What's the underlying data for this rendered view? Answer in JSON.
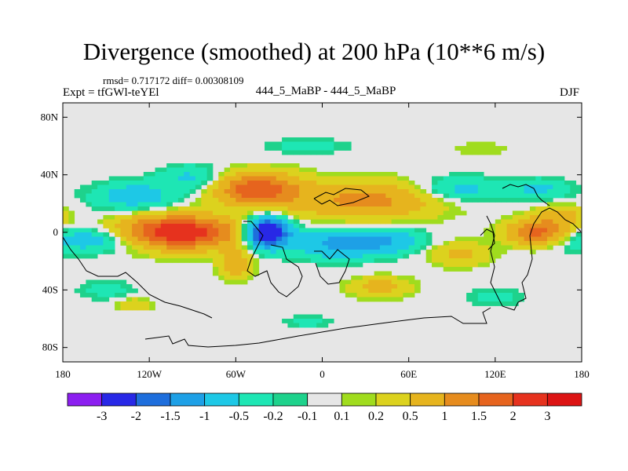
{
  "chart_data": {
    "type": "heatmap",
    "title": "Divergence (smoothed) at 200 hPa (10**6 m/s)",
    "stats": "rmsd= 0.717172  diff= 0.00308109",
    "left_label": "Expt = tfGWl-teYEl",
    "center_label": "444_5_MaBP - 444_5_MaBP",
    "right_label": "DJF",
    "xlim": [
      -180,
      180
    ],
    "ylim": [
      -90,
      90
    ],
    "x_ticks": [
      {
        "value": -180,
        "label": "180"
      },
      {
        "value": -120,
        "label": "120W"
      },
      {
        "value": -60,
        "label": "60W"
      },
      {
        "value": 0,
        "label": "0"
      },
      {
        "value": 60,
        "label": "60E"
      },
      {
        "value": 120,
        "label": "120E"
      },
      {
        "value": 180,
        "label": "180"
      }
    ],
    "y_ticks": [
      {
        "value": 80,
        "label": "80N"
      },
      {
        "value": 40,
        "label": "40N"
      },
      {
        "value": 0,
        "label": "0"
      },
      {
        "value": -40,
        "label": "40S"
      },
      {
        "value": -80,
        "label": "80S"
      }
    ],
    "colorbar": {
      "colors": [
        "#8c1ff0",
        "#2828e6",
        "#1e6edc",
        "#1ea0e6",
        "#1ec8e6",
        "#1ee6b4",
        "#1ed28c",
        "#e6e6e6",
        "#a0dc1e",
        "#dcd21e",
        "#e6b41e",
        "#e68c1e",
        "#e6641e",
        "#e6321e",
        "#dc1414"
      ],
      "levels": [
        "-3",
        "-2",
        "-1.5",
        "-1",
        "-0.5",
        "-0.2",
        "-0.1",
        "0.1",
        "0.2",
        "0.5",
        "1",
        "1.5",
        "2",
        "3"
      ]
    },
    "features": [
      {
        "name": "tropical-pacific-convergence-blue",
        "lon": -160,
        "lat": -5,
        "value": -0.9,
        "sx": 25,
        "sy": 6
      },
      {
        "name": "nh-midlat-blue-west",
        "lon": -130,
        "lat": 25,
        "value": -0.8,
        "sx": 20,
        "sy": 7
      },
      {
        "name": "nh-midlat-blue-central",
        "lon": -90,
        "lat": 38,
        "value": -0.6,
        "sx": 15,
        "sy": 6
      },
      {
        "name": "east-pacific-divergence-max",
        "lon": -100,
        "lat": 0,
        "value": 2.6,
        "sx": 28,
        "sy": 8
      },
      {
        "name": "us-divergence-max",
        "lon": -45,
        "lat": 30,
        "value": 1.9,
        "sx": 20,
        "sy": 8
      },
      {
        "name": "atlantic-orange-band",
        "lon": 30,
        "lat": 22,
        "value": 1.2,
        "sx": 35,
        "sy": 9
      },
      {
        "name": "amazon-convergence-min",
        "lon": -38,
        "lat": 0,
        "value": -3.1,
        "sx": 10,
        "sy": 7
      },
      {
        "name": "south-atlantic-blue",
        "lon": 10,
        "lat": -8,
        "value": -1.1,
        "sx": 22,
        "sy": 7
      },
      {
        "name": "africa-blue",
        "lon": 45,
        "lat": -6,
        "value": -0.8,
        "sx": 18,
        "sy": 6
      },
      {
        "name": "sh-orange-south-america",
        "lon": -60,
        "lat": -22,
        "value": 0.8,
        "sx": 8,
        "sy": 7
      },
      {
        "name": "sh-orange-africa",
        "lon": 40,
        "lat": -38,
        "value": 0.7,
        "sx": 15,
        "sy": 5
      },
      {
        "name": "indian-ocean-orange",
        "lon": 95,
        "lat": -15,
        "value": 0.6,
        "sx": 15,
        "sy": 6
      },
      {
        "name": "west-pacific-divergence",
        "lon": 150,
        "lat": 0,
        "value": 1.7,
        "sx": 15,
        "sy": 6
      },
      {
        "name": "asia-blue",
        "lon": 95,
        "lat": 30,
        "value": -0.7,
        "sx": 20,
        "sy": 6
      },
      {
        "name": "north-pacific-blue",
        "lon": 150,
        "lat": 30,
        "value": -0.6,
        "sx": 15,
        "sy": 5
      },
      {
        "name": "north-pacific-orange",
        "lon": 165,
        "lat": 12,
        "value": 0.7,
        "sx": 12,
        "sy": 5
      },
      {
        "name": "sh-teal-band-west",
        "lon": -150,
        "lat": -40,
        "value": -0.3,
        "sx": 14,
        "sy": 5
      },
      {
        "name": "sh-teal-band-east",
        "lon": 120,
        "lat": -45,
        "value": -0.3,
        "sx": 15,
        "sy": 4
      },
      {
        "name": "sh-high-lat-teal",
        "lon": -10,
        "lat": -62,
        "value": -0.3,
        "sx": 12,
        "sy": 3
      },
      {
        "name": "nh-high-lat-teal",
        "lon": -10,
        "lat": 60,
        "value": -0.3,
        "sx": 20,
        "sy": 4
      },
      {
        "name": "nh-high-lat-green-east",
        "lon": 110,
        "lat": 58,
        "value": 0.2,
        "sx": 15,
        "sy": 4
      },
      {
        "name": "sh-south-pacific-orange",
        "lon": -130,
        "lat": -50,
        "value": 0.5,
        "sx": 8,
        "sy": 3
      }
    ]
  }
}
